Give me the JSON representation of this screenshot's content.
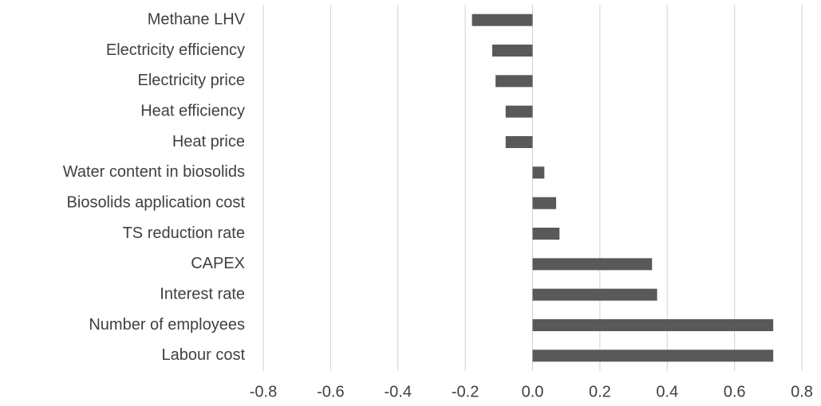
{
  "chart_data": {
    "type": "barh",
    "categories": [
      "Methane LHV",
      "Electricity efficiency",
      "Electricity price",
      "Heat efficiency",
      "Heat price",
      "Water content in biosolids",
      "Biosolids application cost",
      "TS reduction rate",
      "CAPEX",
      "Interest rate",
      "Number of employees",
      "Labour cost"
    ],
    "values": [
      -0.18,
      -0.12,
      -0.11,
      -0.08,
      -0.08,
      0.035,
      0.07,
      0.08,
      0.355,
      0.37,
      0.715,
      0.715
    ],
    "color": "#595959",
    "xlim": [
      -0.8,
      0.8
    ],
    "xticks": [
      -0.8,
      -0.6,
      -0.4,
      -0.2,
      {
        "value": 0,
        "label": "0.0"
      },
      0.2,
      0.4,
      0.6,
      0.8
    ],
    "grid": true
  }
}
